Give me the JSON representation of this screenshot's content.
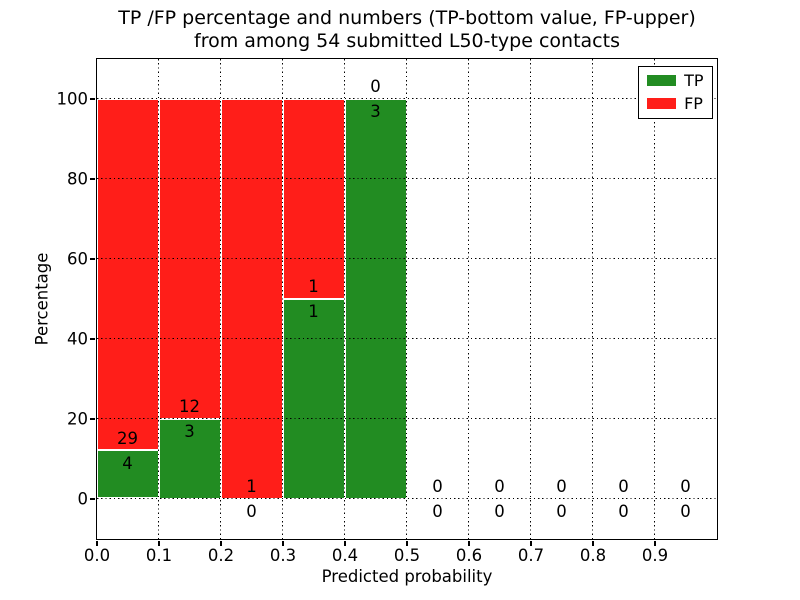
{
  "title": {
    "line1": "TP /FP percentage and numbers (TP-bottom value, FP-upper)",
    "line2": "from among 54 submitted L50-type contacts"
  },
  "axes": {
    "xlabel": "Predicted probability",
    "ylabel": "Percentage",
    "xticks": {
      "values": [
        0.0,
        0.1,
        0.2,
        0.3,
        0.4,
        0.5,
        0.6,
        0.7,
        0.8,
        0.9
      ],
      "labels": [
        "0.0",
        "0.1",
        "0.2",
        "0.3",
        "0.4",
        "0.5",
        "0.6",
        "0.7",
        "0.8",
        "0.9"
      ]
    },
    "yticks": {
      "values": [
        0,
        20,
        40,
        60,
        80,
        100
      ],
      "labels": [
        "0",
        "20",
        "40",
        "60",
        "80",
        "100"
      ]
    }
  },
  "legend": {
    "items": [
      {
        "label": "TP",
        "color": "#228c22"
      },
      {
        "label": "FP",
        "color": "#ff1e19"
      }
    ]
  },
  "colors": {
    "tp": "#228c22",
    "fp": "#ff1e19",
    "grid": "#000000",
    "background": "#ffffff"
  },
  "chart_data": {
    "type": "bar",
    "stacked": true,
    "orientation": "vertical",
    "title": "TP /FP percentage and numbers (TP-bottom value, FP-upper) from among 54 submitted L50-type contacts",
    "xlabel": "Predicted probability",
    "ylabel": "Percentage",
    "xlim": [
      0.0,
      1.0
    ],
    "ylim": [
      -10,
      110
    ],
    "grid": true,
    "grid_style": "dotted",
    "legend_position": "upper right",
    "total_contacts": 54,
    "bin_width": 0.1,
    "bins": [
      {
        "range": [
          0.0,
          0.1
        ],
        "tp_count": 4,
        "fp_count": 29,
        "tp_pct": 12.12,
        "fp_pct": 87.88
      },
      {
        "range": [
          0.1,
          0.2
        ],
        "tp_count": 3,
        "fp_count": 12,
        "tp_pct": 20,
        "fp_pct": 80
      },
      {
        "range": [
          0.2,
          0.3
        ],
        "tp_count": 0,
        "fp_count": 1,
        "tp_pct": 0,
        "fp_pct": 100
      },
      {
        "range": [
          0.3,
          0.4
        ],
        "tp_count": 1,
        "fp_count": 1,
        "tp_pct": 50,
        "fp_pct": 50
      },
      {
        "range": [
          0.4,
          0.5
        ],
        "tp_count": 3,
        "fp_count": 0,
        "tp_pct": 100,
        "fp_pct": 0
      },
      {
        "range": [
          0.5,
          0.6
        ],
        "tp_count": 0,
        "fp_count": 0,
        "tp_pct": 0,
        "fp_pct": 0
      },
      {
        "range": [
          0.6,
          0.7
        ],
        "tp_count": 0,
        "fp_count": 0,
        "tp_pct": 0,
        "fp_pct": 0
      },
      {
        "range": [
          0.7,
          0.8
        ],
        "tp_count": 0,
        "fp_count": 0,
        "tp_pct": 0,
        "fp_pct": 0
      },
      {
        "range": [
          0.8,
          0.9
        ],
        "tp_count": 0,
        "fp_count": 0,
        "tp_pct": 0,
        "fp_pct": 0
      },
      {
        "range": [
          0.9,
          1.0
        ],
        "tp_count": 0,
        "fp_count": 0,
        "tp_pct": 0,
        "fp_pct": 0
      }
    ],
    "series": [
      {
        "name": "TP",
        "color": "#228c22",
        "counts": [
          4,
          3,
          0,
          1,
          3,
          0,
          0,
          0,
          0,
          0
        ]
      },
      {
        "name": "FP",
        "color": "#ff1e19",
        "counts": [
          29,
          12,
          1,
          1,
          0,
          0,
          0,
          0,
          0,
          0
        ]
      }
    ]
  }
}
